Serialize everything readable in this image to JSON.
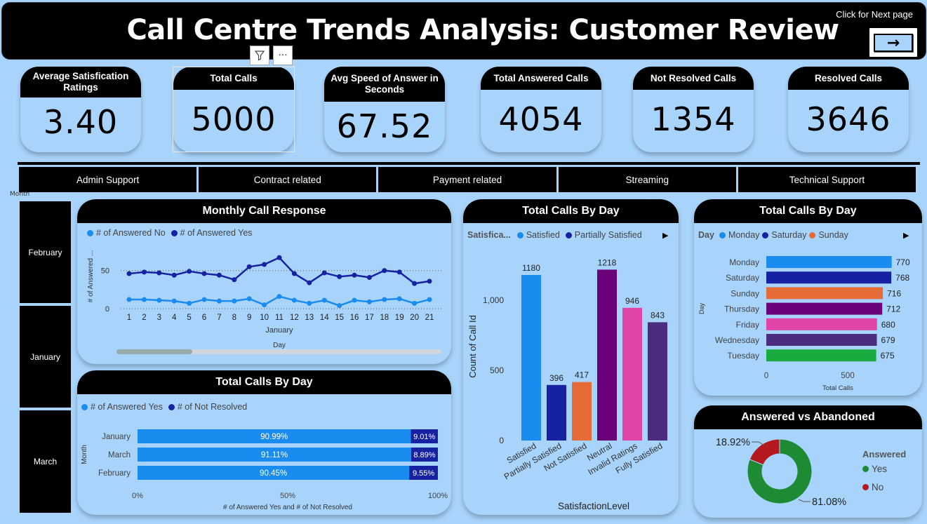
{
  "header": {
    "title": "Call Centre Trends Analysis: Customer Review",
    "next_text": "Click for Next page",
    "next_arrow": "→"
  },
  "kpis": [
    {
      "label": "Average Satisfication Ratings",
      "value": "3.40"
    },
    {
      "label": "Total Calls",
      "value": "5000"
    },
    {
      "label": "Avg Speed of Answer in Seconds",
      "value": "67.52"
    },
    {
      "label": "Total Answered Calls",
      "value": "4054"
    },
    {
      "label": "Not Resolved Calls",
      "value": "1354"
    },
    {
      "label": "Resolved Calls",
      "value": "3646"
    }
  ],
  "topics": [
    "Admin Support",
    "Contract related",
    "Payment related",
    "Streaming",
    "Technical Support"
  ],
  "month_slicer": {
    "label": "Month",
    "items": [
      "February",
      "January",
      "March"
    ]
  },
  "colors": {
    "accent": "#1a8cf0",
    "navy": "#1722a3",
    "orange": "#e66c37",
    "purple": "#6b007b",
    "pink": "#e044a7",
    "dark_purple": "#4b2d7f",
    "green": "#1aab40",
    "donut_green": "#1e8a34",
    "donut_red": "#b3191e"
  },
  "chart_data": [
    {
      "type": "line",
      "title": "Monthly Call Response",
      "legend": [
        "# of Answered No",
        "# of Answered Yes"
      ],
      "xlabel": "Day",
      "xgroup": "January",
      "ylabel": "# of Answered ...",
      "x": [
        1,
        2,
        3,
        4,
        5,
        6,
        7,
        8,
        9,
        10,
        11,
        12,
        13,
        14,
        15,
        16,
        17,
        18,
        19,
        20,
        21
      ],
      "yticks": [
        0,
        50
      ],
      "ylim": [
        0,
        70
      ],
      "series": [
        {
          "name": "# of Answered No",
          "values": [
            12,
            12,
            11,
            10,
            7,
            12,
            10,
            10,
            13,
            5,
            16,
            11,
            7,
            11,
            4,
            11,
            9,
            12,
            13,
            7,
            12
          ]
        },
        {
          "name": "# of Answered Yes",
          "values": [
            46,
            48,
            47,
            44,
            49,
            46,
            44,
            38,
            55,
            58,
            67,
            46,
            34,
            47,
            42,
            44,
            41,
            50,
            48,
            33,
            36
          ]
        }
      ]
    },
    {
      "type": "bar",
      "title": "Total Calls By Day",
      "legend_title": "Satisfica...",
      "legend": [
        "Satisfied",
        "Partially Satisfied"
      ],
      "xlabel": "SatisfactionLevel",
      "ylabel": "Count of Call Id",
      "yticks": [
        "0",
        "500",
        "1,000"
      ],
      "ylim": [
        0,
        1300
      ],
      "categories": [
        "Satisfied",
        "Partially Satisfied",
        "Not Satisfied",
        "Neutral",
        "Invalid Ratings",
        "Fully Satisfied"
      ],
      "values": [
        1180,
        396,
        417,
        1218,
        946,
        843
      ],
      "bar_colors": [
        "#1a8cf0",
        "#1722a3",
        "#e66c37",
        "#6b007b",
        "#e044a7",
        "#4b2d7f"
      ]
    },
    {
      "type": "bar",
      "orientation": "horizontal",
      "title": "Total Calls By Day",
      "legend_title": "Day",
      "legend": [
        "Monday",
        "Saturday",
        "Sunday"
      ],
      "ylabel": "Day",
      "xlabel": "Total Calls",
      "xticks": [
        "0",
        "500"
      ],
      "xlim": [
        0,
        1000
      ],
      "categories": [
        "Monday",
        "Saturday",
        "Sunday",
        "Thursday",
        "Friday",
        "Wednesday",
        "Tuesday"
      ],
      "values": [
        770,
        768,
        716,
        712,
        680,
        679,
        675
      ],
      "bar_colors": [
        "#1a8cf0",
        "#1722a3",
        "#e66c37",
        "#6b007b",
        "#e044a7",
        "#4b2d7f",
        "#1aab40"
      ]
    },
    {
      "type": "bar",
      "orientation": "horizontal",
      "stacked": "100%",
      "title": "Total Calls By Day",
      "legend": [
        "# of Answered Yes",
        "# of Not Resolved"
      ],
      "ylabel": "Month",
      "xlabel": "# of Answered Yes and # of Not Resolved",
      "xticks": [
        "0%",
        "50%",
        "100%"
      ],
      "categories": [
        "January",
        "March",
        "February"
      ],
      "series": [
        {
          "name": "# of Answered Yes",
          "values": [
            90.99,
            91.11,
            90.45
          ],
          "labels": [
            "90.99%",
            "91.11%",
            "90.45%"
          ]
        },
        {
          "name": "# of Not Resolved",
          "values": [
            9.01,
            8.89,
            9.55
          ],
          "labels": [
            "9.01%",
            "8.89%",
            "9.55%"
          ]
        }
      ]
    },
    {
      "type": "pie",
      "donut": true,
      "title": "Answered vs Abandoned",
      "legend_title": "Answered",
      "legend": [
        "Yes",
        "No"
      ],
      "values": [
        81.08,
        18.92
      ],
      "labels": [
        "81.08%",
        "18.92%"
      ]
    }
  ]
}
